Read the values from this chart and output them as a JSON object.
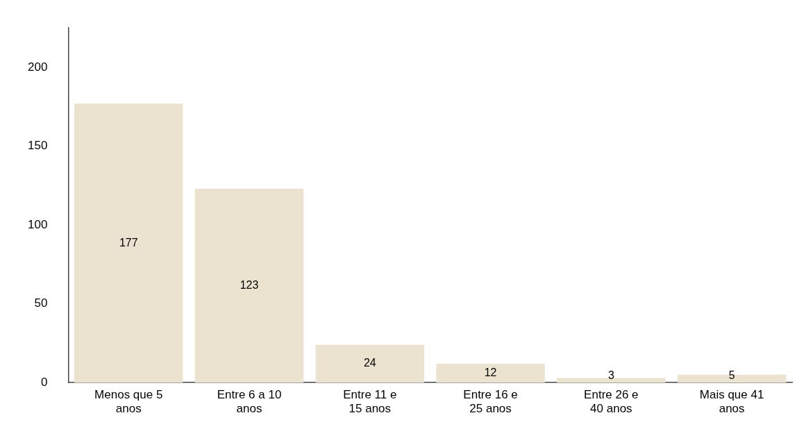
{
  "chart_data": {
    "type": "bar",
    "categories": [
      "Menos que 5 anos",
      "Entre 6 a 10 anos",
      "Entre 11 e 15 anos",
      "Entre 16 e 25 anos",
      "Entre 26 e 40 anos",
      "Mais que 41 anos"
    ],
    "values": [
      177,
      123,
      24,
      12,
      3,
      5
    ],
    "color": "#ebe3cf",
    "ylim": [
      0,
      225
    ],
    "yticks": [
      0,
      50,
      100,
      150,
      200
    ],
    "grid": false,
    "data_labels": true
  }
}
